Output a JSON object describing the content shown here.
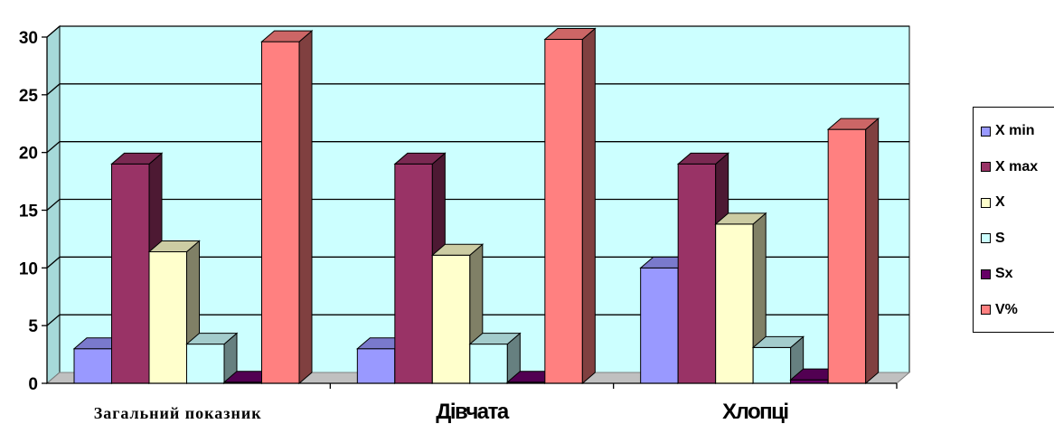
{
  "chart_data": {
    "type": "bar",
    "style": "3d-clustered-column",
    "categories": [
      "Загальний показник",
      "Дівчата",
      "Хлопці"
    ],
    "series": [
      {
        "name": "X min",
        "values": [
          3,
          3,
          10
        ],
        "color": "#9999FF",
        "side": "#666699",
        "top": "#7A7ACC"
      },
      {
        "name": "X max",
        "values": [
          19,
          19,
          19
        ],
        "color": "#993366",
        "side": "#4D1933",
        "top": "#7A2952"
      },
      {
        "name": "X",
        "values": [
          11.4,
          11.1,
          13.8
        ],
        "color": "#FFFFCC",
        "side": "#808066",
        "top": "#CCCCA3"
      },
      {
        "name": "S",
        "values": [
          3.4,
          3.4,
          3.1
        ],
        "color": "#CCFFFF",
        "side": "#668080",
        "top": "#A3CCCC"
      },
      {
        "name": "Sx",
        "values": [
          0.1,
          0.1,
          0.3
        ],
        "color": "#660066",
        "side": "#330033",
        "top": "#520052"
      },
      {
        "name": "V%",
        "values": [
          29.6,
          29.8,
          22
        ],
        "color": "#FF8080",
        "side": "#804040",
        "top": "#CC6666"
      }
    ],
    "yticks": [
      0,
      5,
      10,
      15,
      20,
      25,
      30
    ],
    "ylim": [
      0,
      30
    ],
    "title": "",
    "xlabel": "",
    "ylabel": "",
    "grid": true,
    "plot_background": "#CCFFFF",
    "legend_position": "right"
  }
}
